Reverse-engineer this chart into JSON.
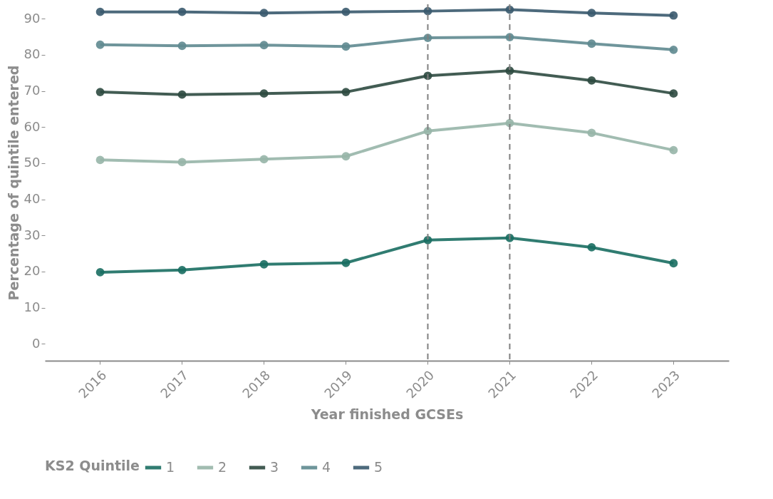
{
  "chart_data": {
    "type": "line",
    "xlabel": "Year finished GCSEs",
    "ylabel": "Percentage of quintile entered",
    "legend_title": "KS2 Quintile",
    "categories": [
      "2016",
      "2017",
      "2018",
      "2019",
      "2020",
      "2021",
      "2022",
      "2023"
    ],
    "series": [
      {
        "name": "1",
        "color": "#1a6e62",
        "values": [
          19.8,
          20.4,
          22.0,
          22.4,
          28.7,
          29.3,
          26.7,
          22.3
        ]
      },
      {
        "name": "2",
        "color": "#97b5a8",
        "values": [
          50.9,
          50.3,
          51.1,
          51.9,
          58.9,
          61.1,
          58.4,
          53.6
        ]
      },
      {
        "name": "3",
        "color": "#2e4a40",
        "values": [
          69.7,
          69.0,
          69.3,
          69.7,
          74.2,
          75.6,
          72.9,
          69.3
        ]
      },
      {
        "name": "4",
        "color": "#5f8a90",
        "values": [
          82.8,
          82.5,
          82.7,
          82.3,
          84.7,
          84.9,
          83.1,
          81.4
        ]
      },
      {
        "name": "5",
        "color": "#3a5a6e",
        "values": [
          91.9,
          91.9,
          91.6,
          91.9,
          92.1,
          92.5,
          91.6,
          90.9
        ]
      }
    ],
    "ylim": [
      -4.7,
      94
    ],
    "yticks": [
      0,
      10,
      20,
      30,
      40,
      50,
      60,
      70,
      80,
      90
    ],
    "ref_lines": [
      {
        "axis": "x",
        "value": "2020",
        "color": "#808080",
        "line_style": "dashed"
      },
      {
        "axis": "x",
        "value": "2021",
        "color": "#808080",
        "line_style": "dashed"
      }
    ],
    "grid": false,
    "legend": "bottom",
    "marker": "circle",
    "line_style": "solid"
  }
}
